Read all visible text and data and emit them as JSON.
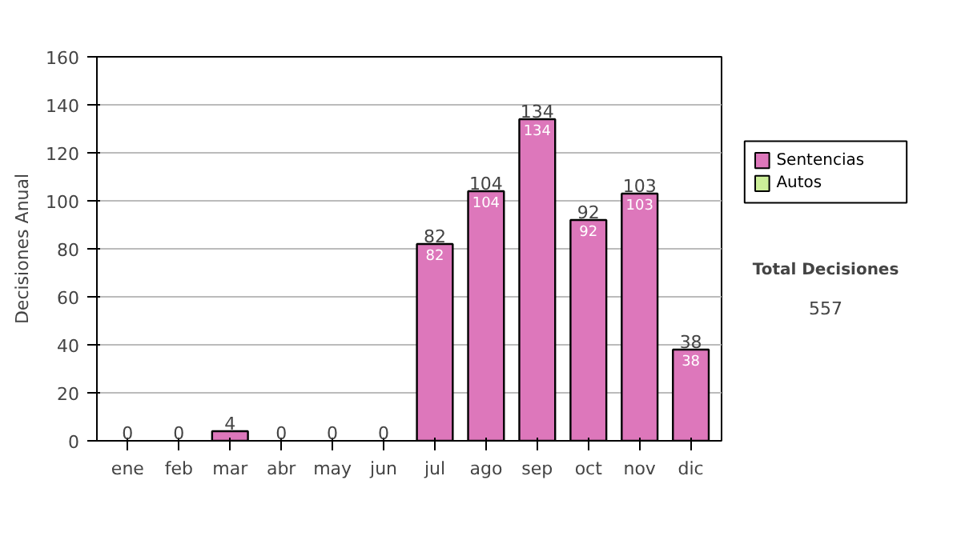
{
  "chart_data": {
    "type": "bar",
    "stacked": true,
    "ylabel": "Decisiones Anual",
    "categories": [
      "ene",
      "feb",
      "mar",
      "abr",
      "may",
      "jun",
      "jul",
      "ago",
      "sep",
      "oct",
      "nov",
      "dic"
    ],
    "series": [
      {
        "name": "Sentencias",
        "color": "#dd77bb",
        "values": [
          0,
          0,
          4,
          0,
          0,
          0,
          82,
          104,
          134,
          92,
          103,
          38
        ],
        "value_labels": [
          null,
          null,
          null,
          null,
          null,
          null,
          "82",
          "104",
          "134",
          "92",
          "103",
          "38"
        ]
      },
      {
        "name": "Autos",
        "color": "#ccee99",
        "values": [
          0,
          0,
          0,
          0,
          0,
          0,
          0,
          0,
          0,
          0,
          0,
          0
        ]
      }
    ],
    "totals": [
      "0",
      "0",
      "4",
      "0",
      "0",
      "0",
      "82",
      "104",
      "134",
      "92",
      "103",
      "38"
    ],
    "ylim": [
      0,
      160
    ],
    "yticks": [
      0,
      20,
      40,
      60,
      80,
      100,
      120,
      140,
      160
    ],
    "grid": "y",
    "legend": "right",
    "annotations": [
      "Total Decisiones",
      "557"
    ]
  }
}
